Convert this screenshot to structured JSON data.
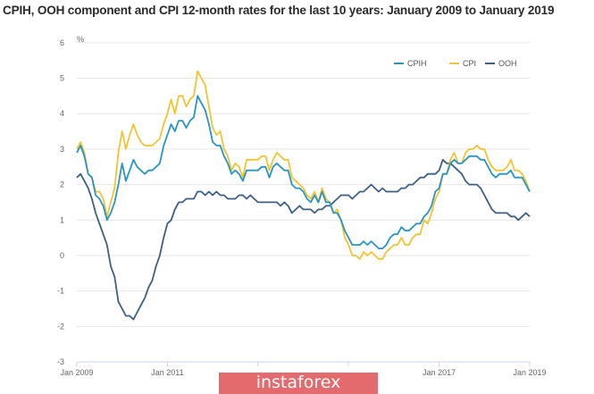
{
  "chart_data": {
    "type": "line",
    "title": "CPIH, OOH component and CPI 12-month rates for the last 10 years: January 2009 to January 2019",
    "ylabel": "%",
    "xlabel": "",
    "ylim": [
      -3,
      6
    ],
    "yticks": [
      "6",
      "5",
      "4",
      "3",
      "2",
      "1",
      "0",
      "-1",
      "-2",
      "-3"
    ],
    "x_range": [
      "Jan 2009",
      "Jan 2019"
    ],
    "frequency": "monthly",
    "xtick_labels": [
      "Jan 2009",
      "Jan 2011",
      "Jan 2017",
      "Jan 2019"
    ],
    "grid": true,
    "legend_position": "top-right",
    "series": [
      {
        "name": "CPIH",
        "color": "#2a94c2",
        "values": [
          2.9,
          3.1,
          2.8,
          2.3,
          2.2,
          1.7,
          1.6,
          1.4,
          1.0,
          1.2,
          1.5,
          2.0,
          2.6,
          2.1,
          2.4,
          2.7,
          2.5,
          2.4,
          2.3,
          2.4,
          2.4,
          2.5,
          2.6,
          3.1,
          3.4,
          3.7,
          3.5,
          3.8,
          3.8,
          3.6,
          3.8,
          3.9,
          4.5,
          4.3,
          4.1,
          3.7,
          3.2,
          3.1,
          3.1,
          2.8,
          2.6,
          2.3,
          2.4,
          2.3,
          2.1,
          2.4,
          2.4,
          2.4,
          2.4,
          2.5,
          2.5,
          2.2,
          2.5,
          2.6,
          2.5,
          2.4,
          2.4,
          2.0,
          1.9,
          1.9,
          1.8,
          1.6,
          1.5,
          1.7,
          1.5,
          1.8,
          1.5,
          1.5,
          1.2,
          1.2,
          1.0,
          0.7,
          0.5,
          0.3,
          0.3,
          0.3,
          0.4,
          0.3,
          0.4,
          0.3,
          0.2,
          0.2,
          0.3,
          0.5,
          0.6,
          0.6,
          0.8,
          0.7,
          0.7,
          0.8,
          0.9,
          0.9,
          1.1,
          1.2,
          1.4,
          1.8,
          1.9,
          2.3,
          2.3,
          2.6,
          2.7,
          2.6,
          2.6,
          2.7,
          2.8,
          2.8,
          2.8,
          2.7,
          2.7,
          2.5,
          2.3,
          2.2,
          2.3,
          2.3,
          2.3,
          2.4,
          2.2,
          2.2,
          2.2,
          2.0,
          1.8
        ]
      },
      {
        "name": "CPI",
        "color": "#f0c432",
        "values": [
          3.0,
          3.2,
          2.9,
          2.3,
          2.2,
          1.8,
          1.8,
          1.6,
          1.1,
          1.5,
          1.9,
          2.9,
          3.5,
          3.0,
          3.4,
          3.7,
          3.4,
          3.2,
          3.1,
          3.1,
          3.1,
          3.2,
          3.3,
          3.7,
          4.0,
          4.4,
          4.0,
          4.5,
          4.5,
          4.2,
          4.4,
          4.5,
          5.2,
          5.0,
          4.8,
          4.2,
          3.6,
          3.4,
          3.5,
          3.0,
          2.8,
          2.4,
          2.6,
          2.5,
          2.2,
          2.7,
          2.7,
          2.7,
          2.7,
          2.8,
          2.8,
          2.4,
          2.7,
          2.9,
          2.8,
          2.7,
          2.7,
          2.2,
          2.1,
          2.0,
          1.9,
          1.7,
          1.6,
          1.8,
          1.5,
          1.9,
          1.6,
          1.5,
          1.2,
          1.3,
          1.0,
          0.5,
          0.3,
          0.0,
          0.0,
          -0.1,
          0.1,
          0.0,
          0.1,
          0.0,
          -0.1,
          -0.1,
          0.1,
          0.2,
          0.3,
          0.3,
          0.5,
          0.3,
          0.3,
          0.5,
          0.6,
          0.6,
          1.0,
          0.9,
          1.2,
          1.6,
          1.8,
          2.3,
          2.3,
          2.7,
          2.9,
          2.6,
          2.6,
          2.9,
          3.0,
          3.0,
          3.1,
          3.0,
          3.0,
          2.7,
          2.5,
          2.4,
          2.4,
          2.4,
          2.5,
          2.7,
          2.4,
          2.4,
          2.3,
          2.1,
          1.8
        ]
      },
      {
        "name": "OOH",
        "color": "#3d5f85",
        "values": [
          2.2,
          2.3,
          2.1,
          1.9,
          1.6,
          1.2,
          0.9,
          0.6,
          0.3,
          -0.3,
          -0.6,
          -1.3,
          -1.5,
          -1.7,
          -1.7,
          -1.8,
          -1.6,
          -1.4,
          -1.2,
          -0.9,
          -0.7,
          -0.3,
          0.0,
          0.5,
          0.9,
          1.0,
          1.3,
          1.5,
          1.5,
          1.6,
          1.6,
          1.6,
          1.8,
          1.8,
          1.7,
          1.8,
          1.7,
          1.8,
          1.7,
          1.7,
          1.6,
          1.6,
          1.6,
          1.7,
          1.7,
          1.6,
          1.7,
          1.6,
          1.5,
          1.5,
          1.5,
          1.5,
          1.5,
          1.5,
          1.4,
          1.5,
          1.4,
          1.2,
          1.3,
          1.4,
          1.3,
          1.3,
          1.3,
          1.2,
          1.3,
          1.3,
          1.4,
          1.4,
          1.5,
          1.6,
          1.7,
          1.7,
          1.7,
          1.6,
          1.7,
          1.8,
          1.8,
          1.9,
          2.0,
          1.9,
          1.8,
          1.9,
          1.8,
          1.8,
          1.8,
          1.8,
          1.9,
          1.9,
          2.0,
          2.0,
          2.1,
          2.2,
          2.2,
          2.3,
          2.3,
          2.3,
          2.4,
          2.7,
          2.6,
          2.6,
          2.5,
          2.4,
          2.3,
          2.1,
          2.0,
          2.0,
          2.0,
          1.9,
          1.7,
          1.5,
          1.3,
          1.2,
          1.2,
          1.2,
          1.2,
          1.1,
          1.1,
          1.0,
          1.1,
          1.2,
          1.1
        ]
      }
    ]
  },
  "watermark": {
    "text": "instaforex",
    "color": "#e36a6d"
  }
}
